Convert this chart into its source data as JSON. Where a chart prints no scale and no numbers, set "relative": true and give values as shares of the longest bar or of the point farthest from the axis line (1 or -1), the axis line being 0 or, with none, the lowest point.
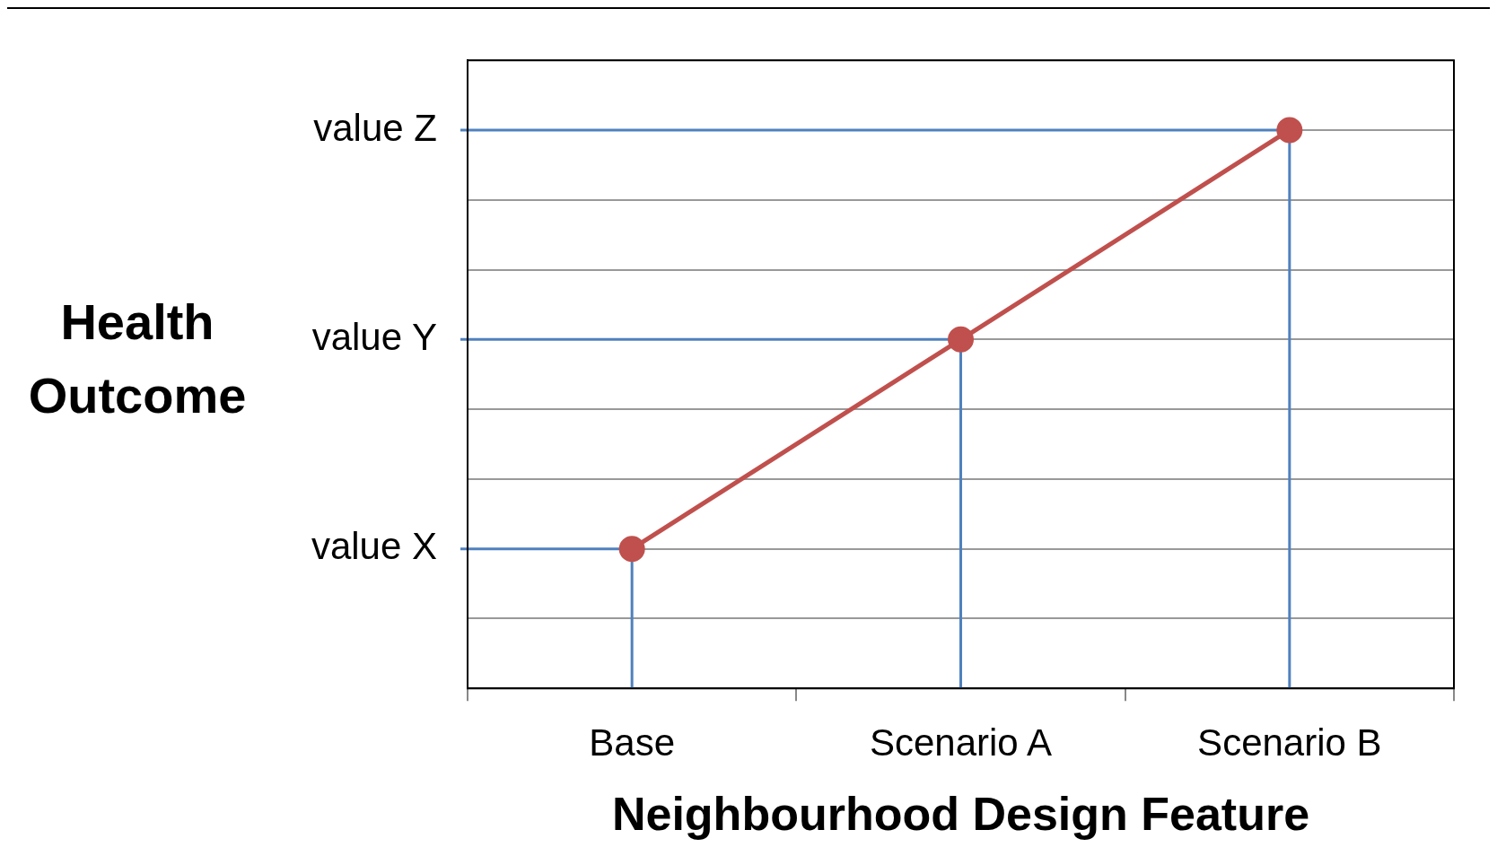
{
  "chart_data": {
    "type": "line",
    "xlabel": "Neighbourhood Design Feature",
    "ylabel": "Health Outcome",
    "categories": [
      "Base",
      "Scenario A",
      "Scenario B"
    ],
    "series": [
      {
        "color": "#c0504d",
        "values": [
          0.25,
          0.625,
          1
        ]
      }
    ],
    "relative": true,
    "grid": "y",
    "marker": "circle",
    "line_style": "solid",
    "legend": false,
    "ref_lines": [
      {
        "axis": "y",
        "value": 0.25,
        "label": "value X",
        "color": "#4f81bd"
      },
      {
        "axis": "y",
        "value": 0.625,
        "label": "value Y",
        "color": "#4f81bd"
      },
      {
        "axis": "y",
        "value": 1,
        "label": "value Z",
        "color": "#4f81bd"
      },
      {
        "axis": "x",
        "value": "Base",
        "color": "#4f81bd"
      },
      {
        "axis": "x",
        "value": "Scenario A",
        "color": "#4f81bd"
      },
      {
        "axis": "x",
        "value": "Scenario B",
        "color": "#4f81bd"
      }
    ]
  }
}
